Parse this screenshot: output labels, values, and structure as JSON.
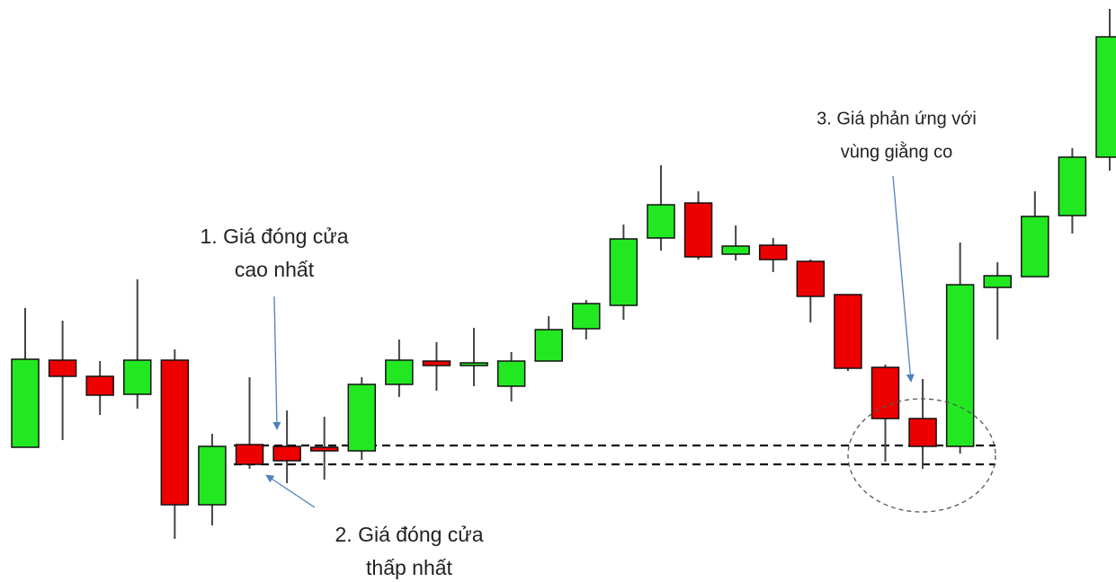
{
  "chart_data": {
    "type": "candlestick",
    "open": [
      150,
      247,
      229,
      209,
      247,
      86,
      153,
      151,
      150,
      146,
      220,
      246,
      241,
      218,
      246,
      282,
      308,
      383,
      422,
      365,
      375,
      357,
      320,
      239,
      182,
      151,
      328,
      340,
      408,
      473
    ],
    "high": [
      305,
      291,
      246,
      337,
      259,
      165,
      228,
      191,
      184,
      228,
      270,
      267,
      283,
      256,
      296,
      314,
      398,
      464,
      435,
      397,
      383,
      359,
      320,
      242,
      226,
      378,
      356,
      435,
      483,
      638
    ],
    "low": [
      150,
      158,
      186,
      193,
      48,
      63,
      126,
      110,
      114,
      136,
      206,
      213,
      218,
      201,
      246,
      270,
      292,
      369,
      359,
      358,
      345,
      289,
      235,
      134,
      126,
      143,
      270,
      340,
      388,
      458
    ],
    "close": [
      248,
      229,
      208,
      247,
      86,
      151,
      131,
      135,
      146,
      220,
      247,
      241,
      244,
      246,
      281,
      310,
      382,
      420,
      362,
      374,
      359,
      318,
      238,
      182,
      151,
      331,
      341,
      407,
      473,
      607
    ],
    "up_color": "#22e822",
    "down_color": "#ee0000",
    "ylim": [
      0,
      648
    ],
    "levels": [
      152,
      131
    ],
    "annotations": [
      [
        "1. Giá đóng cửa",
        "cao nhất"
      ],
      [
        "2. Giá đóng cửa",
        "thấp nhất"
      ],
      [
        "3. Giá phản ứng với",
        "vùng giằng co"
      ]
    ]
  }
}
